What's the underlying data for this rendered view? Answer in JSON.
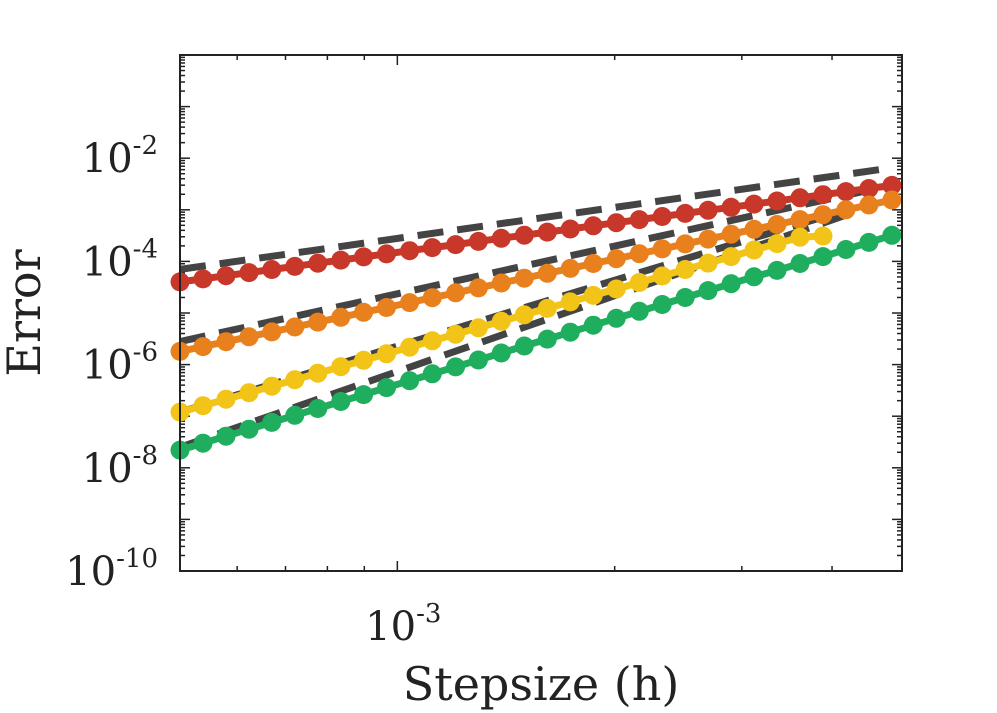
{
  "chart_data": {
    "type": "line",
    "title": "",
    "xlabel": "Stepsize (h)",
    "ylabel": "Error",
    "xscale": "log",
    "yscale": "log",
    "xlim": [
      0.0005,
      0.005
    ],
    "ylim": [
      1e-10,
      1
    ],
    "grid": false,
    "legend": "none",
    "x_ticks": [
      {
        "base": "10",
        "exp": "-3",
        "value": 0.001
      }
    ],
    "y_ticks": [
      {
        "base": "10",
        "exp": "-2",
        "value": 0.01
      },
      {
        "base": "10",
        "exp": "-4",
        "value": 0.0001
      },
      {
        "base": "10",
        "exp": "-6",
        "value": 1e-06
      },
      {
        "base": "10",
        "exp": "-8",
        "value": 1e-08
      },
      {
        "base": "10",
        "exp": "-10",
        "value": 1e-10
      }
    ],
    "series": [
      {
        "color": "#c8382a",
        "x": [
          0.0005,
          0.000538,
          0.000579,
          0.000623,
          0.00067,
          0.000721,
          0.000776,
          0.000835,
          0.000898,
          0.000966,
          0.00104,
          0.001118,
          0.001204,
          0.001295,
          0.001393,
          0.001499,
          0.001613,
          0.001736,
          0.001868,
          0.00201,
          0.002163,
          0.002327,
          0.002504,
          0.002694,
          0.002899,
          0.003119,
          0.003356,
          0.003612,
          0.003886,
          0.004181,
          0.004499,
          0.004842
        ],
        "values": [
          4e-05,
          4.59e-05,
          5.28e-05,
          6.07e-05,
          6.97e-05,
          8.01e-05,
          9.21e-05,
          0.000106,
          0.000122,
          0.00014,
          0.000161,
          0.000185,
          0.000212,
          0.000244,
          0.00028,
          0.000322,
          0.00037,
          0.000425,
          0.000489,
          0.000562,
          0.000645,
          0.000742,
          0.000852,
          0.000979,
          0.00112,
          0.00129,
          0.00148,
          0.00171,
          0.00196,
          0.00225,
          0.00259,
          0.00297
        ]
      },
      {
        "color": "#e8801e",
        "x": [
          0.0005,
          0.000538,
          0.000579,
          0.000623,
          0.00067,
          0.000721,
          0.000776,
          0.000835,
          0.000898,
          0.000966,
          0.00104,
          0.001118,
          0.001204,
          0.001295,
          0.001393,
          0.001499,
          0.001613,
          0.001736,
          0.001868,
          0.00201,
          0.002163,
          0.002327,
          0.002504,
          0.002694,
          0.002899,
          0.003119,
          0.003356,
          0.003612,
          0.003886,
          0.004181,
          0.004499,
          0.004842
        ],
        "values": [
          1.8e-06,
          2.23e-06,
          2.78e-06,
          3.46e-06,
          4.3e-06,
          5.35e-06,
          6.65e-06,
          8.26e-06,
          1.03e-05,
          1.28e-05,
          1.59e-05,
          1.98e-05,
          2.46e-05,
          3.06e-05,
          3.81e-05,
          4.73e-05,
          5.88e-05,
          7.31e-05,
          9.1e-05,
          0.000113,
          0.000141,
          0.000175,
          0.000218,
          0.000271,
          0.000336,
          0.000418,
          0.00052,
          0.000647,
          0.000804,
          0.001,
          0.00124,
          0.00155
        ]
      },
      {
        "color": "#f2c418",
        "x": [
          0.0005,
          0.000538,
          0.000579,
          0.000623,
          0.00067,
          0.000721,
          0.000776,
          0.000835,
          0.000898,
          0.000966,
          0.00104,
          0.001118,
          0.001204,
          0.001295,
          0.001393,
          0.001499,
          0.001613,
          0.001736,
          0.001868,
          0.00201,
          0.002163,
          0.002327,
          0.002504,
          0.002694,
          0.002899,
          0.003119,
          0.003356,
          0.003612,
          0.003886
        ],
        "values": [
          1.2e-07,
          1.6e-07,
          2.14e-07,
          2.86e-07,
          3.82e-07,
          5.1e-07,
          6.81e-07,
          9.09e-07,
          1.21e-06,
          1.62e-06,
          2.17e-06,
          2.89e-06,
          3.86e-06,
          5.16e-06,
          6.89e-06,
          9.2e-06,
          1.23e-05,
          1.64e-05,
          2.19e-05,
          2.92e-05,
          3.9e-05,
          5.21e-05,
          6.96e-05,
          9.29e-05,
          0.000124,
          0.000166,
          0.000221,
          0.000295,
          0.00031
        ]
      },
      {
        "color": "#1fae5e",
        "x": [
          0.0005,
          0.000538,
          0.000579,
          0.000623,
          0.00067,
          0.000721,
          0.000776,
          0.000835,
          0.000898,
          0.000966,
          0.00104,
          0.001118,
          0.001204,
          0.001295,
          0.001393,
          0.001499,
          0.001613,
          0.001736,
          0.001868,
          0.00201,
          0.002163,
          0.002327,
          0.002504,
          0.002694,
          0.002899,
          0.003119,
          0.003356,
          0.003612,
          0.003886,
          0.004181,
          0.004499,
          0.004842
        ],
        "values": [
          2.2e-08,
          3e-08,
          4.1e-08,
          5.6e-08,
          7.6e-08,
          1.04e-07,
          1.41e-07,
          1.93e-07,
          2.62e-07,
          3.58e-07,
          4.87e-07,
          6.64e-07,
          9.04e-07,
          1.23e-06,
          1.68e-06,
          2.29e-06,
          3.12e-06,
          4.25e-06,
          5.79e-06,
          7.89e-06,
          1.08e-05,
          1.46e-05,
          2e-05,
          2.72e-05,
          3.7e-05,
          5.04e-05,
          6.7e-05,
          9.1e-05,
          0.000124,
          0.00017,
          0.000233,
          0.00032
        ]
      }
    ],
    "reference_lines": [
      {
        "style": "dashed",
        "color": "#444444",
        "x": [
          0.0005,
          0.004842
        ],
        "values": [
          7e-05,
          0.0065
        ]
      },
      {
        "style": "dashed",
        "color": "#444444",
        "x": [
          0.0005,
          0.004842
        ],
        "values": [
          2.8e-06,
          0.003
        ]
      },
      {
        "style": "dashed",
        "color": "#444444",
        "x": [
          0.0005,
          0.004193
        ],
        "values": [
          1.2e-07,
          0.001
        ]
      },
      {
        "style": "dashed",
        "color": "#444444",
        "x": [
          0.0005,
          0.004193
        ],
        "values": [
          2.5e-08,
          0.0008
        ]
      }
    ]
  }
}
